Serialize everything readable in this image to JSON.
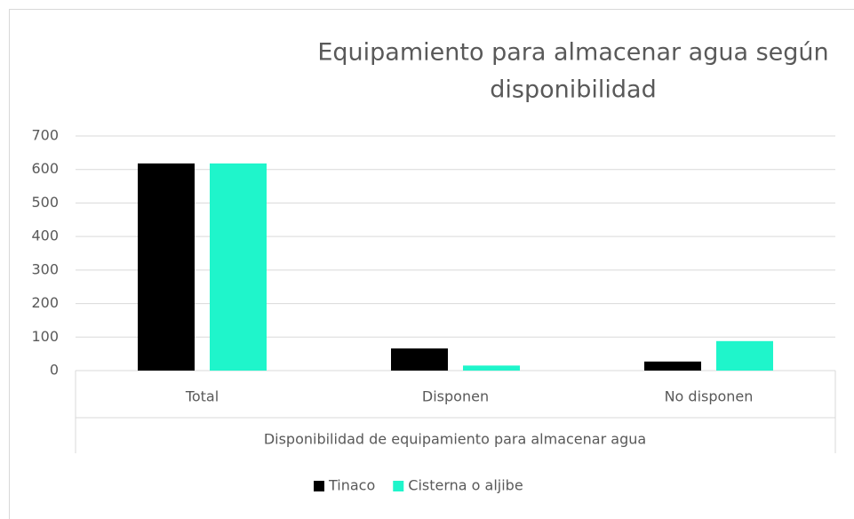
{
  "chart_data": {
    "type": "bar",
    "title": [
      "Equipamiento para almacenar agua según",
      "disponibilidad"
    ],
    "x_label": "Disponibilidad de equipamiento para almacenar agua",
    "categories": [
      "Total",
      "Disponen",
      "No disponen"
    ],
    "series": [
      {
        "name": "Tinaco",
        "color": "#000000",
        "values": [
          618,
          66,
          27
        ]
      },
      {
        "name": "Cisterna o aljibe",
        "color": "#1ff5cb",
        "values": [
          618,
          15,
          88
        ]
      }
    ],
    "ylim": [
      0,
      700
    ],
    "yticks": [
      0,
      100,
      200,
      300,
      400,
      500,
      600,
      700
    ],
    "grid": true,
    "legend": "bottom"
  }
}
